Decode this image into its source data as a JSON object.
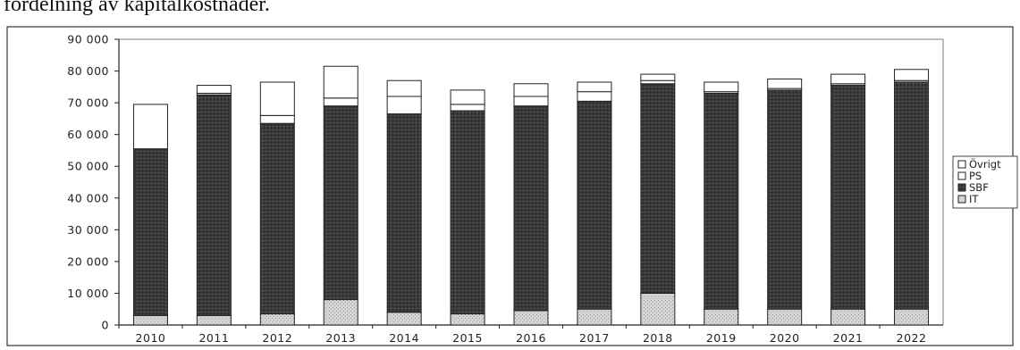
{
  "caption": "fördelning av kapitalkostnader.",
  "colors": {
    "IT": "#d4d4d4",
    "SBF": "#3a3a3a",
    "PS": "#ffffff",
    "Övrigt": "#ffffff"
  },
  "chart_data": {
    "type": "bar",
    "stacked": true,
    "categories": [
      "2010",
      "2011",
      "2012",
      "2013",
      "2014",
      "2015",
      "2016",
      "2017",
      "2018",
      "2019",
      "2020",
      "2021",
      "2022"
    ],
    "series": [
      {
        "name": "IT",
        "values": [
          3000,
          3000,
          3500,
          8000,
          4000,
          3500,
          4500,
          5000,
          10000,
          5000,
          5000,
          5000,
          5000
        ]
      },
      {
        "name": "SBF",
        "values": [
          52500,
          69500,
          60000,
          61000,
          62500,
          64000,
          64500,
          65500,
          66000,
          68000,
          69000,
          70500,
          71500
        ]
      },
      {
        "name": "PS",
        "values": [
          0,
          500,
          2500,
          2500,
          5500,
          2000,
          3000,
          3000,
          1000,
          500,
          500,
          500,
          500
        ]
      },
      {
        "name": "Övrigt",
        "values": [
          14000,
          2500,
          10500,
          10000,
          5000,
          4500,
          4000,
          3000,
          2000,
          3000,
          3000,
          3000,
          3500
        ]
      }
    ],
    "ylim": [
      0,
      90000
    ],
    "yticks": [
      "0",
      "10 000",
      "20 000",
      "30 000",
      "40 000",
      "50 000",
      "60 000",
      "70 000",
      "80 000",
      "90 000"
    ],
    "legend": [
      "Övrigt",
      "PS",
      "SBF",
      "IT"
    ],
    "legend_position": "right",
    "grid": false
  }
}
